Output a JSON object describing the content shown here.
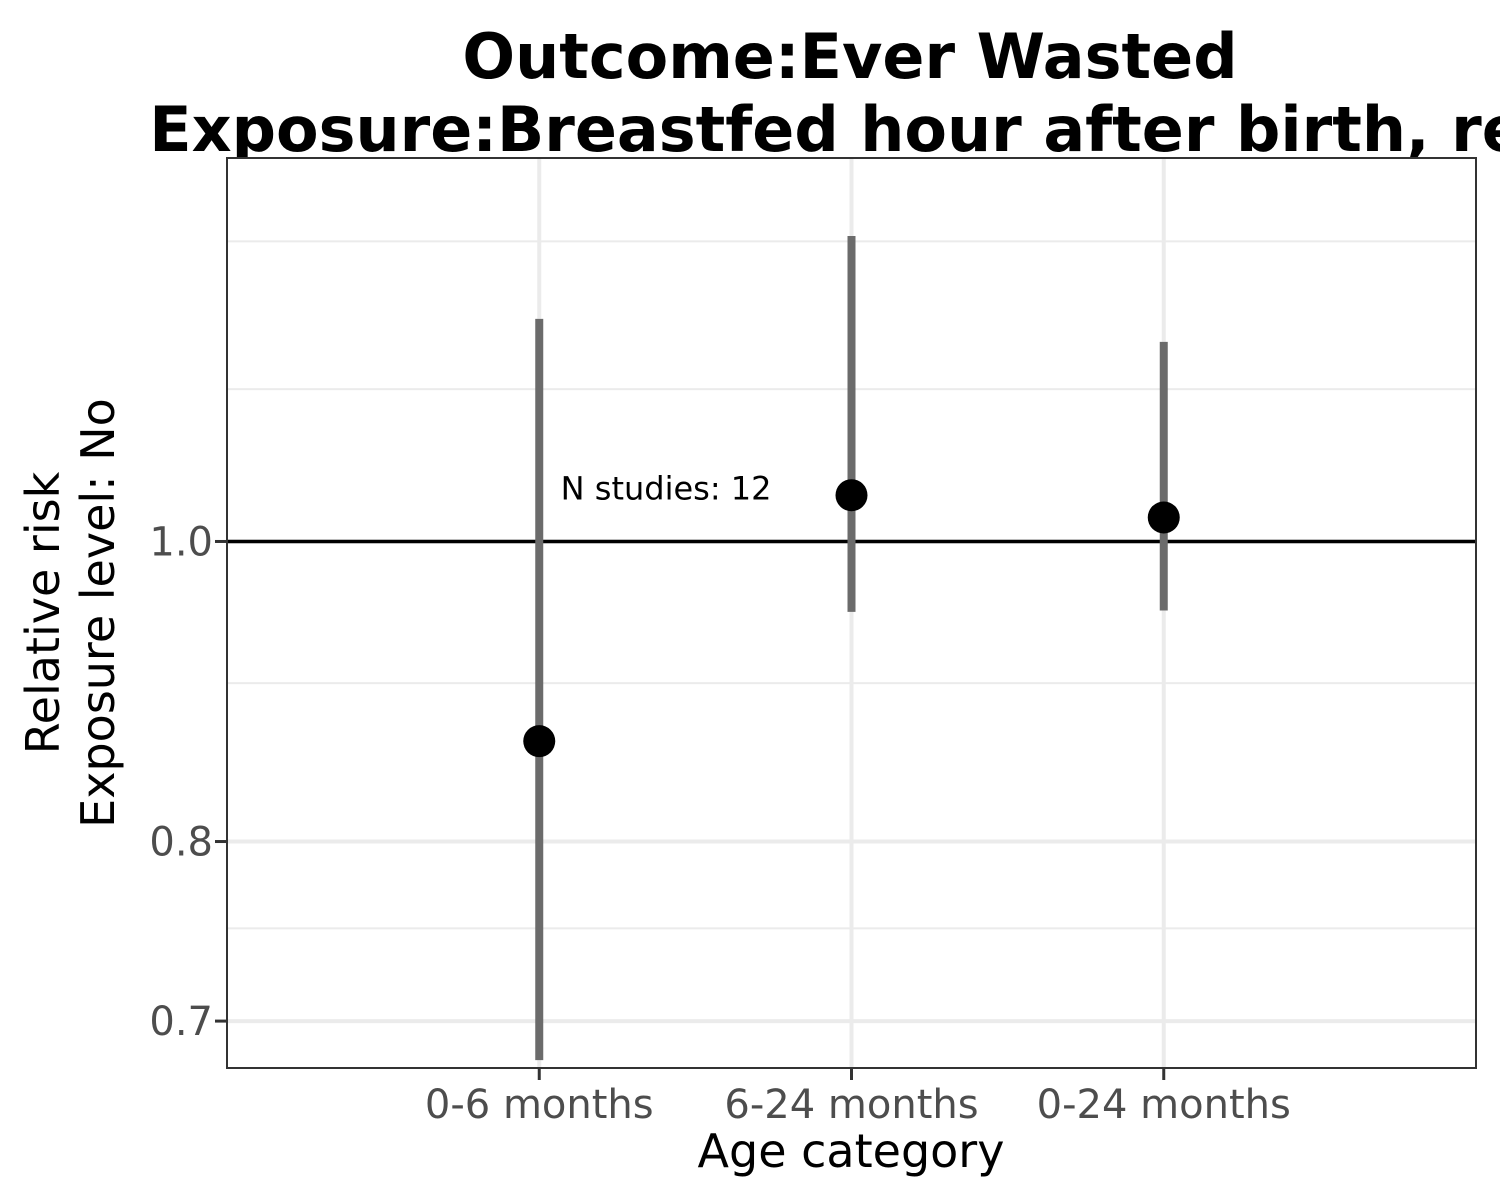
{
  "chart_data": {
    "type": "scatter",
    "title_lines": [
      "Outcome:Ever Wasted",
      "Exposure:Breastfed hour after birth, ref"
    ],
    "xlabel": "Age category",
    "ylabel_lines": [
      "Relative risk",
      "Exposure level: No"
    ],
    "y_scale": "log",
    "ylim": [
      0.676,
      1.33
    ],
    "y_ticks": [
      0.7,
      0.8,
      1.0
    ],
    "y_tick_labels": [
      "0.7",
      "0.8",
      "1.0"
    ],
    "y_minor_ticks": [
      0.75,
      0.9,
      1.12,
      1.25
    ],
    "reference_line": 1.0,
    "grid": true,
    "categories": [
      "0-6 months",
      "6-24 months",
      "0-24 months"
    ],
    "points": [
      {
        "category": "0-6 months",
        "estimate": 0.862,
        "lower": 0.68,
        "upper": 1.18
      },
      {
        "category": "6-24 months",
        "estimate": 1.035,
        "lower": 0.949,
        "upper": 1.255
      },
      {
        "category": "0-24 months",
        "estimate": 1.018,
        "lower": 0.95,
        "upper": 1.16
      }
    ],
    "annotation": {
      "text": "N studies: 12",
      "category": "6-24 months",
      "y": 1.04
    }
  }
}
